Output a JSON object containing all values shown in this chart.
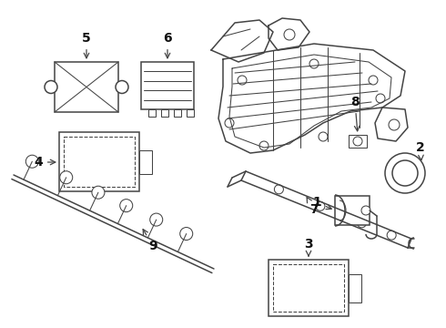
{
  "bg_color": "#ffffff",
  "line_color": "#444444",
  "label_color": "#111111",
  "fig_width": 4.9,
  "fig_height": 3.6,
  "dpi": 100
}
